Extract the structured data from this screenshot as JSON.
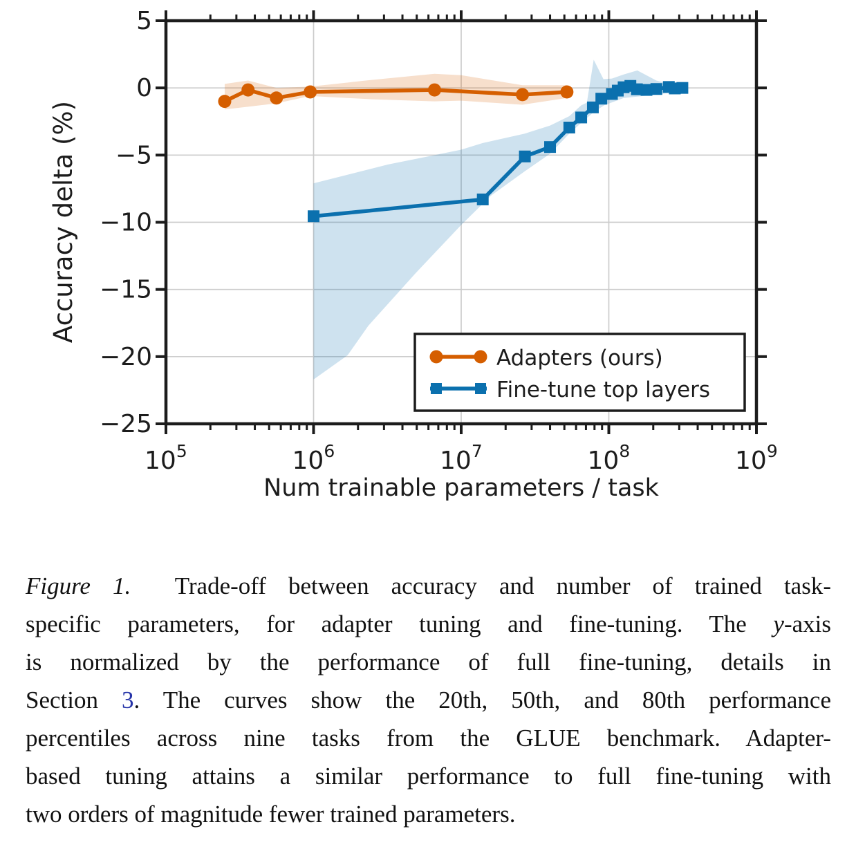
{
  "page": {
    "background": "#ffffff"
  },
  "chart_data": {
    "type": "line",
    "title": "",
    "xlabel": "Num trainable parameters / task",
    "ylabel": "Accuracy delta (%)",
    "x_scale": "log10",
    "xlim": [
      100000,
      1000000000
    ],
    "ylim": [
      -25,
      5
    ],
    "x_tick_exponents": [
      5,
      6,
      7,
      8,
      9
    ],
    "y_ticks": [
      5,
      0,
      -5,
      -10,
      -15,
      -20,
      -25
    ],
    "grid": true,
    "colors": {
      "axis": "#1c1c1c",
      "grid": "#cccccc",
      "background": "#ffffff"
    },
    "legend": {
      "position": "lower right"
    },
    "band_meaning": "20th and 80th performance percentiles, line is 50th percentile",
    "series": [
      {
        "name": "Adapters (ours)",
        "color": "#d55e00",
        "marker": "circle",
        "x": [
          250000,
          360000,
          560000,
          950000,
          6600000,
          26000000,
          52000000
        ],
        "y": [
          -1.0,
          -0.15,
          -0.75,
          -0.3,
          -0.15,
          -0.5,
          -0.3
        ],
        "band_upper": [
          [
            250000,
            0.3
          ],
          [
            360000,
            0.55
          ],
          [
            560000,
            0.0
          ],
          [
            950000,
            0.1
          ],
          [
            2500000,
            0.6
          ],
          [
            6600000,
            1.05
          ],
          [
            10000000,
            0.95
          ],
          [
            26000000,
            0.2
          ],
          [
            52000000,
            0.2
          ]
        ],
        "band_lower": [
          [
            250000,
            -1.6
          ],
          [
            360000,
            -1.4
          ],
          [
            560000,
            -1.15
          ],
          [
            950000,
            -0.6
          ],
          [
            2500000,
            -0.85
          ],
          [
            6600000,
            -1.0
          ],
          [
            10000000,
            -0.95
          ],
          [
            26000000,
            -1.25
          ],
          [
            52000000,
            -0.75
          ]
        ]
      },
      {
        "name": "Fine-tune top layers",
        "color": "#0b70ae",
        "marker": "square",
        "x": [
          1000000,
          14000000,
          27000000,
          40000000,
          54000000,
          65000000,
          78000000,
          89000000,
          105000000,
          115000000,
          126000000,
          140000000,
          155000000,
          180000000,
          210000000,
          255000000,
          280000000,
          315000000
        ],
        "y": [
          -9.55,
          -8.3,
          -5.1,
          -4.4,
          -2.95,
          -2.2,
          -1.45,
          -0.8,
          -0.45,
          -0.2,
          0.05,
          0.15,
          -0.1,
          -0.15,
          -0.08,
          0.07,
          -0.04,
          0.0
        ],
        "band_upper": [
          [
            1000000,
            -7.1
          ],
          [
            3200000,
            -5.7
          ],
          [
            10000000,
            -4.6
          ],
          [
            14000000,
            -4.1
          ],
          [
            27000000,
            -3.4
          ],
          [
            40000000,
            -2.8
          ],
          [
            54000000,
            -2.1
          ],
          [
            65000000,
            -1.3
          ],
          [
            71000000,
            -1.1
          ],
          [
            79000000,
            2.1
          ],
          [
            92000000,
            0.65
          ],
          [
            105000000,
            0.7
          ],
          [
            126000000,
            1.0
          ],
          [
            156000000,
            1.3
          ],
          [
            210000000,
            0.55
          ],
          [
            260000000,
            0.3
          ],
          [
            335000000,
            0.15
          ]
        ],
        "band_lower": [
          [
            1000000,
            -21.7
          ],
          [
            1700000,
            -19.9
          ],
          [
            2350000,
            -17.7
          ],
          [
            4900000,
            -13.8
          ],
          [
            10000000,
            -10.2
          ],
          [
            16000000,
            -8.0
          ],
          [
            27000000,
            -6.2
          ],
          [
            40000000,
            -4.9
          ],
          [
            54000000,
            -3.4
          ],
          [
            65000000,
            -2.6
          ],
          [
            79000000,
            -1.8
          ],
          [
            93000000,
            -1.3
          ],
          [
            126000000,
            -0.75
          ],
          [
            156000000,
            -0.65
          ],
          [
            210000000,
            -0.5
          ],
          [
            260000000,
            -0.35
          ],
          [
            335000000,
            -0.25
          ]
        ]
      }
    ]
  },
  "caption": {
    "link_color": "#2533a8",
    "lines": [
      {
        "justify": true,
        "segments": [
          {
            "text": "Figure 1.",
            "italic": true
          },
          {
            "text": "  Trade-off between accuracy and number of trained task-"
          }
        ]
      },
      {
        "justify": true,
        "segments": [
          {
            "text": "specific parameters, for adapter tuning and fine-tuning. The "
          },
          {
            "text": "y",
            "italic": true
          },
          {
            "text": "-axis"
          }
        ]
      },
      {
        "justify": true,
        "segments": [
          {
            "text": "is normalized by the performance of full fine-tuning, details in"
          }
        ]
      },
      {
        "justify": true,
        "segments": [
          {
            "text": "Section "
          },
          {
            "text": "3",
            "link": true
          },
          {
            "text": ". The curves show the 20th, 50th, and 80th performance"
          }
        ]
      },
      {
        "justify": true,
        "segments": [
          {
            "text": "percentiles across nine tasks from the GLUE benchmark. Adapter-"
          }
        ]
      },
      {
        "justify": true,
        "segments": [
          {
            "text": "based tuning attains a similar performance to full fine-tuning with"
          }
        ]
      },
      {
        "justify": false,
        "segments": [
          {
            "text": "two orders of magnitude fewer trained parameters."
          }
        ]
      }
    ]
  }
}
